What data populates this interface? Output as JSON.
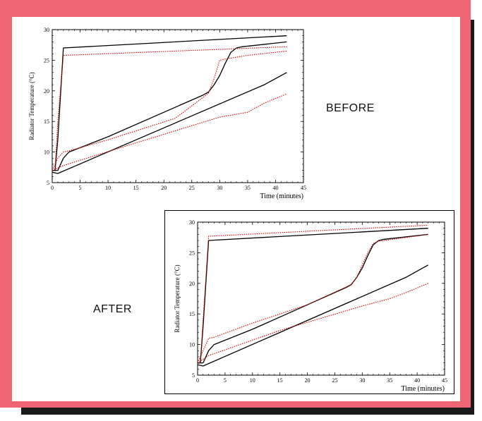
{
  "labels": {
    "before": "BEFORE",
    "after": "AFTER"
  },
  "colors": {
    "frame": "#f06574",
    "shadow": "#1a1a1a",
    "measured": "#000000",
    "simulated": "#cc0000"
  },
  "chart_data": [
    {
      "type": "line",
      "title": "",
      "xlabel": "Time (minutes)",
      "ylabel": "Radiator Temperature (°C)",
      "xlim": [
        0,
        45
      ],
      "ylim": [
        5,
        30
      ],
      "xticks": [
        0,
        5,
        10,
        15,
        20,
        25,
        30,
        35,
        40,
        45
      ],
      "yticks": [
        5,
        10,
        15,
        20,
        25,
        30
      ],
      "grid": false,
      "series": [
        {
          "style": "solid",
          "color": "#000000",
          "x": [
            0,
            0.5,
            1,
            2,
            42
          ],
          "y": [
            7,
            7,
            12,
            27,
            29
          ]
        },
        {
          "style": "dotted",
          "color": "#cc0000",
          "x": [
            0,
            0.5,
            1,
            2,
            42
          ],
          "y": [
            7,
            7,
            15,
            25.8,
            27.2
          ]
        },
        {
          "style": "solid",
          "color": "#000000",
          "x": [
            0,
            1,
            2,
            3,
            10,
            20,
            27,
            28,
            29,
            30,
            31,
            32,
            33,
            34,
            42
          ],
          "y": [
            7,
            7,
            9,
            10,
            12.5,
            16.5,
            19.3,
            19.8,
            21,
            22.5,
            24.5,
            26.3,
            27,
            27.2,
            28
          ]
        },
        {
          "style": "dotted",
          "color": "#cc0000",
          "x": [
            0,
            1,
            2,
            3,
            10,
            22,
            28,
            29,
            30,
            31,
            35,
            42
          ],
          "y": [
            7,
            9,
            10,
            10.2,
            12,
            15.5,
            19.6,
            22,
            25,
            25.2,
            25.8,
            26.5
          ]
        },
        {
          "style": "solid",
          "color": "#000000",
          "x": [
            0,
            1,
            38,
            42
          ],
          "y": [
            6.7,
            6.5,
            21,
            23
          ]
        },
        {
          "style": "dotted",
          "color": "#cc0000",
          "x": [
            0,
            2,
            15,
            30,
            35,
            38,
            42
          ],
          "y": [
            7,
            7.8,
            11.5,
            15.7,
            16.5,
            18,
            19.5
          ]
        }
      ]
    },
    {
      "type": "line",
      "title": "",
      "xlabel": "Time (minutes)",
      "ylabel": "Radiator Temperature (°C)",
      "xlim": [
        0,
        45
      ],
      "ylim": [
        5,
        30
      ],
      "xticks": [
        0,
        5,
        10,
        15,
        20,
        25,
        30,
        35,
        40,
        45
      ],
      "yticks": [
        5,
        10,
        15,
        20,
        25,
        30
      ],
      "grid": false,
      "series": [
        {
          "style": "solid",
          "color": "#000000",
          "x": [
            0,
            0.5,
            1,
            2,
            42
          ],
          "y": [
            7,
            7,
            13,
            27,
            29
          ]
        },
        {
          "style": "dotted",
          "color": "#cc0000",
          "x": [
            0,
            0.5,
            1,
            2,
            42
          ],
          "y": [
            7,
            7,
            14,
            27.7,
            29.5
          ]
        },
        {
          "style": "solid",
          "color": "#000000",
          "x": [
            0,
            1,
            2,
            3,
            10,
            20,
            27,
            28,
            29,
            30,
            31,
            32,
            33,
            34,
            42
          ],
          "y": [
            7,
            7,
            9,
            10,
            12.5,
            16.5,
            19.3,
            19.8,
            21,
            22.5,
            24.5,
            26.3,
            27,
            27.2,
            28
          ]
        },
        {
          "style": "dotted",
          "color": "#cc0000",
          "x": [
            0,
            1,
            2,
            3,
            10,
            20,
            28,
            29,
            30,
            31,
            32,
            33,
            34,
            42
          ],
          "y": [
            7,
            9,
            11,
            11.2,
            13.5,
            16.5,
            19.8,
            21,
            23,
            25,
            26.5,
            26.9,
            27,
            28
          ]
        },
        {
          "style": "solid",
          "color": "#000000",
          "x": [
            0,
            1,
            38,
            42
          ],
          "y": [
            6.7,
            6.5,
            21,
            23
          ]
        },
        {
          "style": "dotted",
          "color": "#cc0000",
          "x": [
            0,
            2,
            15,
            30,
            35,
            38,
            42
          ],
          "y": [
            7,
            8.2,
            12.3,
            16.3,
            17.5,
            18.5,
            20
          ]
        }
      ]
    }
  ]
}
